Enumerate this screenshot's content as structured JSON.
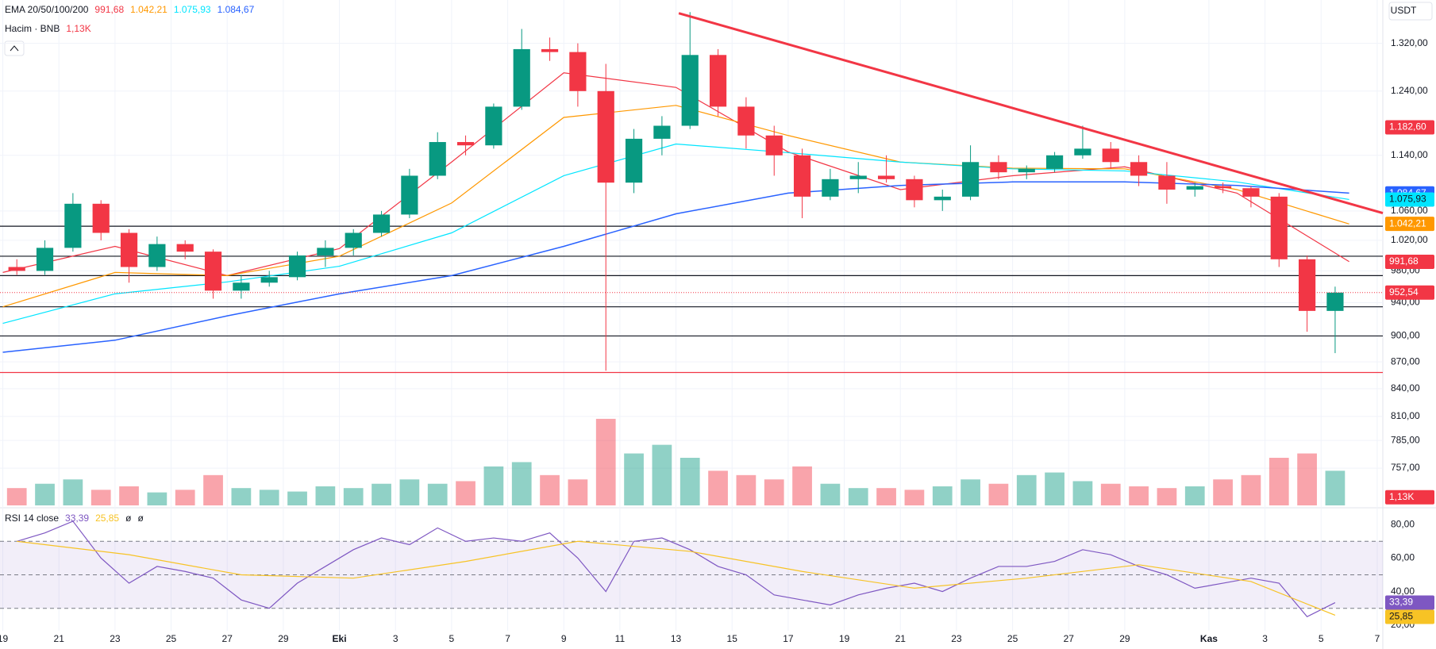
{
  "chart_data": [
    {
      "type": "candlestick",
      "currency": "USDT",
      "indicator_title": "EMA 20/50/100/200",
      "x": [
        0,
        1,
        2,
        3,
        4,
        5,
        6,
        7,
        8,
        9,
        10,
        11,
        12,
        13,
        14,
        15,
        16,
        17,
        18,
        19,
        20,
        21,
        22,
        23,
        24,
        25,
        26,
        27,
        28,
        29,
        30,
        31,
        32,
        33,
        34,
        35,
        36,
        37,
        38,
        39,
        40,
        41,
        42,
        43,
        44,
        45,
        46,
        47
      ],
      "open": [
        985,
        980,
        1010,
        1070,
        1030,
        985,
        1015,
        1005,
        955,
        965,
        972,
        1000,
        1010,
        1030,
        1055,
        1110,
        1160,
        1155,
        1215,
        1310,
        1305,
        1240,
        1100,
        1165,
        1185,
        1300,
        1215,
        1170,
        1140,
        1080,
        1105,
        1110,
        1105,
        1075,
        1080,
        1130,
        1115,
        1120,
        1140,
        1150,
        1130,
        1110,
        1090,
        1095,
        1092,
        1080,
        995,
        930
      ],
      "high": [
        995,
        1020,
        1085,
        1075,
        1035,
        1025,
        1020,
        1008,
        975,
        980,
        1005,
        1020,
        1035,
        1060,
        1120,
        1175,
        1170,
        1220,
        1345,
        1330,
        1320,
        1285,
        1180,
        1200,
        1375,
        1310,
        1230,
        1185,
        1150,
        1120,
        1130,
        1140,
        1110,
        1090,
        1155,
        1140,
        1125,
        1145,
        1185,
        1160,
        1140,
        1130,
        1100,
        1100,
        1095,
        1085,
        1000,
        960
      ],
      "low": [
        975,
        975,
        1005,
        1020,
        965,
        980,
        995,
        945,
        945,
        960,
        968,
        985,
        1000,
        1025,
        1050,
        1105,
        1140,
        1150,
        1210,
        1290,
        1215,
        860,
        1085,
        1140,
        1180,
        1200,
        1150,
        1110,
        1050,
        1075,
        1085,
        1100,
        1065,
        1060,
        1075,
        1105,
        1105,
        1115,
        1135,
        1120,
        1095,
        1070,
        1080,
        1085,
        1065,
        985,
        905,
        880
      ],
      "close": [
        980,
        1010,
        1070,
        1030,
        985,
        1015,
        1005,
        955,
        965,
        972,
        1000,
        1010,
        1030,
        1055,
        1110,
        1160,
        1155,
        1215,
        1310,
        1305,
        1240,
        1100,
        1165,
        1185,
        1300,
        1215,
        1170,
        1140,
        1080,
        1105,
        1110,
        1105,
        1075,
        1080,
        1130,
        1115,
        1120,
        1140,
        1150,
        1130,
        1110,
        1090,
        1095,
        1092,
        1080,
        995,
        930,
        952.54
      ],
      "xlim": [
        -0.1,
        49.2
      ],
      "xticks": [
        {
          "value": 0,
          "label": "19"
        },
        {
          "value": 2,
          "label": "21"
        },
        {
          "value": 4,
          "label": "23"
        },
        {
          "value": 6,
          "label": "25"
        },
        {
          "value": 8,
          "label": "27"
        },
        {
          "value": 10,
          "label": "29"
        },
        {
          "value": 12,
          "label": "Eki"
        },
        {
          "value": 14,
          "label": "3"
        },
        {
          "value": 16,
          "label": "5"
        },
        {
          "value": 18,
          "label": "7"
        },
        {
          "value": 20,
          "label": "9"
        },
        {
          "value": 22,
          "label": "11"
        },
        {
          "value": 24,
          "label": "13"
        },
        {
          "value": 26,
          "label": "15"
        },
        {
          "value": 28,
          "label": "17"
        },
        {
          "value": 30,
          "label": "19"
        },
        {
          "value": 32,
          "label": "21"
        },
        {
          "value": 34,
          "label": "23"
        },
        {
          "value": 36,
          "label": "25"
        },
        {
          "value": 38,
          "label": "27"
        },
        {
          "value": 40,
          "label": "29"
        },
        {
          "value": 43,
          "label": "Kas"
        },
        {
          "value": 45,
          "label": "3"
        },
        {
          "value": 47,
          "label": "5"
        },
        {
          "value": 49,
          "label": "7"
        }
      ],
      "ylim": [
        721,
        1397
      ],
      "log": true,
      "yticks": [
        {
          "value": 1320,
          "label": "1.320,00"
        },
        {
          "value": 1240,
          "label": "1.240,00"
        },
        {
          "value": 1140,
          "label": "1.140,00"
        },
        {
          "value": 1060,
          "label": "1.060,00"
        },
        {
          "value": 1020,
          "label": "1.020,00"
        },
        {
          "value": 980,
          "label": "980,00"
        },
        {
          "value": 940,
          "label": "940,00"
        },
        {
          "value": 900,
          "label": "900,00"
        },
        {
          "value": 870,
          "label": "870,00"
        },
        {
          "value": 840,
          "label": "840,00"
        },
        {
          "value": 810,
          "label": "810,00"
        },
        {
          "value": 785,
          "label": "785,00"
        },
        {
          "value": 757,
          "label": "757,00"
        }
      ],
      "colors": {
        "up": "#089981",
        "down": "#f23645"
      },
      "ema": [
        {
          "color": "#f23645",
          "x": [
            0,
            4,
            8,
            12,
            16,
            20,
            24,
            28,
            32,
            36,
            40,
            44,
            48
          ],
          "values": [
            978,
            1012,
            974,
            1009,
            1130,
            1270,
            1246,
            1145,
            1090,
            1110,
            1123,
            1085,
            992
          ],
          "last": {
            "value": 991.68,
            "label": "991,68"
          }
        },
        {
          "color": "#ff9800",
          "x": [
            0,
            4,
            8,
            12,
            16,
            20,
            24,
            28,
            32,
            36,
            40,
            44,
            48
          ],
          "values": [
            935,
            978,
            974,
            999,
            1071,
            1198,
            1217,
            1170,
            1130,
            1121,
            1120,
            1090,
            1042
          ],
          "last": {
            "value": 1042.21,
            "label": "1.042,21"
          }
        },
        {
          "color": "#00e5ff",
          "x": [
            0,
            4,
            8,
            12,
            16,
            20,
            24,
            28,
            32,
            36,
            40,
            44,
            48
          ],
          "values": [
            915,
            951,
            966,
            986,
            1030,
            1110,
            1157,
            1144,
            1130,
            1120,
            1117,
            1101,
            1076
          ],
          "last": {
            "value": 1075.93,
            "label": "1.075,93"
          }
        },
        {
          "color": "#2962ff",
          "x": [
            0,
            4,
            8,
            12,
            16,
            20,
            24,
            28,
            32,
            36,
            40,
            44,
            48
          ],
          "values": [
            881,
            895,
            924,
            951,
            974,
            1012,
            1056,
            1085,
            1096,
            1101,
            1101,
            1096,
            1085
          ],
          "last": {
            "value": 1084.67,
            "label": "1.084,67"
          }
        }
      ],
      "volume": {
        "title": "Hacim · BNB",
        "values": [
          20,
          25,
          30,
          18,
          22,
          15,
          18,
          35,
          20,
          18,
          16,
          22,
          20,
          25,
          30,
          25,
          28,
          45,
          50,
          35,
          30,
          100,
          60,
          70,
          55,
          40,
          35,
          30,
          45,
          25,
          20,
          20,
          18,
          22,
          30,
          25,
          35,
          38,
          28,
          25,
          22,
          20,
          22,
          30,
          35,
          55,
          60,
          40
        ],
        "ylim": [
          0,
          110
        ],
        "last": {
          "value": 1.13,
          "label": "1,13K"
        }
      },
      "levels": [
        {
          "value": 1039,
          "color": "#131722"
        },
        {
          "value": 999,
          "color": "#131722"
        },
        {
          "value": 974,
          "color": "#131722"
        },
        {
          "value": 935,
          "color": "#131722"
        },
        {
          "value": 900,
          "color": "#131722"
        },
        {
          "value": 858,
          "color": "#f23645"
        }
      ],
      "trendline": {
        "x": [
          24.1,
          49.2
        ],
        "values": [
          1373,
          1057
        ],
        "color": "#f23645"
      },
      "current_price": {
        "value": 952.54,
        "label": "952,54",
        "color": "#f23645"
      },
      "price_marker": {
        "value": 1182.6,
        "label": "1.182,60",
        "color": "#f23645"
      }
    },
    {
      "type": "line",
      "title": "RSI 14 close",
      "x": [
        0,
        1,
        2,
        3,
        4,
        5,
        6,
        7,
        8,
        9,
        10,
        11,
        12,
        13,
        14,
        15,
        16,
        17,
        18,
        19,
        20,
        21,
        22,
        23,
        24,
        25,
        26,
        27,
        28,
        29,
        30,
        31,
        32,
        33,
        34,
        35,
        36,
        37,
        38,
        39,
        40,
        41,
        42,
        43,
        44,
        45,
        46,
        47
      ],
      "values": [
        70,
        75,
        82,
        60,
        45,
        55,
        52,
        48,
        35,
        30,
        45,
        55,
        65,
        72,
        68,
        78,
        70,
        72,
        70,
        75,
        60,
        40,
        70,
        72,
        65,
        55,
        50,
        38,
        35,
        32,
        38,
        42,
        45,
        40,
        48,
        55,
        55,
        58,
        65,
        62,
        55,
        50,
        42,
        45,
        48,
        45,
        25,
        33.39
      ],
      "color": "#7e57c2",
      "ma": {
        "x": [
          0,
          4,
          8,
          12,
          16,
          20,
          24,
          28,
          32,
          36,
          40,
          44,
          47
        ],
        "values": [
          70,
          62,
          50,
          48,
          58,
          70,
          64,
          52,
          42,
          48,
          56,
          46,
          25.85
        ],
        "color": "#f7c325"
      },
      "ylim": [
        16.6,
        88.6
      ],
      "yticks": [
        {
          "value": 80,
          "label": "80,00"
        },
        {
          "value": 60,
          "label": "60,00"
        },
        {
          "value": 40,
          "label": "40,00"
        },
        {
          "value": 20,
          "label": "20,00"
        }
      ],
      "bands": [
        30,
        50,
        70
      ],
      "last": {
        "value": 33.39,
        "label": "33,39"
      },
      "ma_last": {
        "value": 25.85,
        "label": "25,85"
      },
      "extra": [
        "ø",
        "ø"
      ]
    }
  ]
}
